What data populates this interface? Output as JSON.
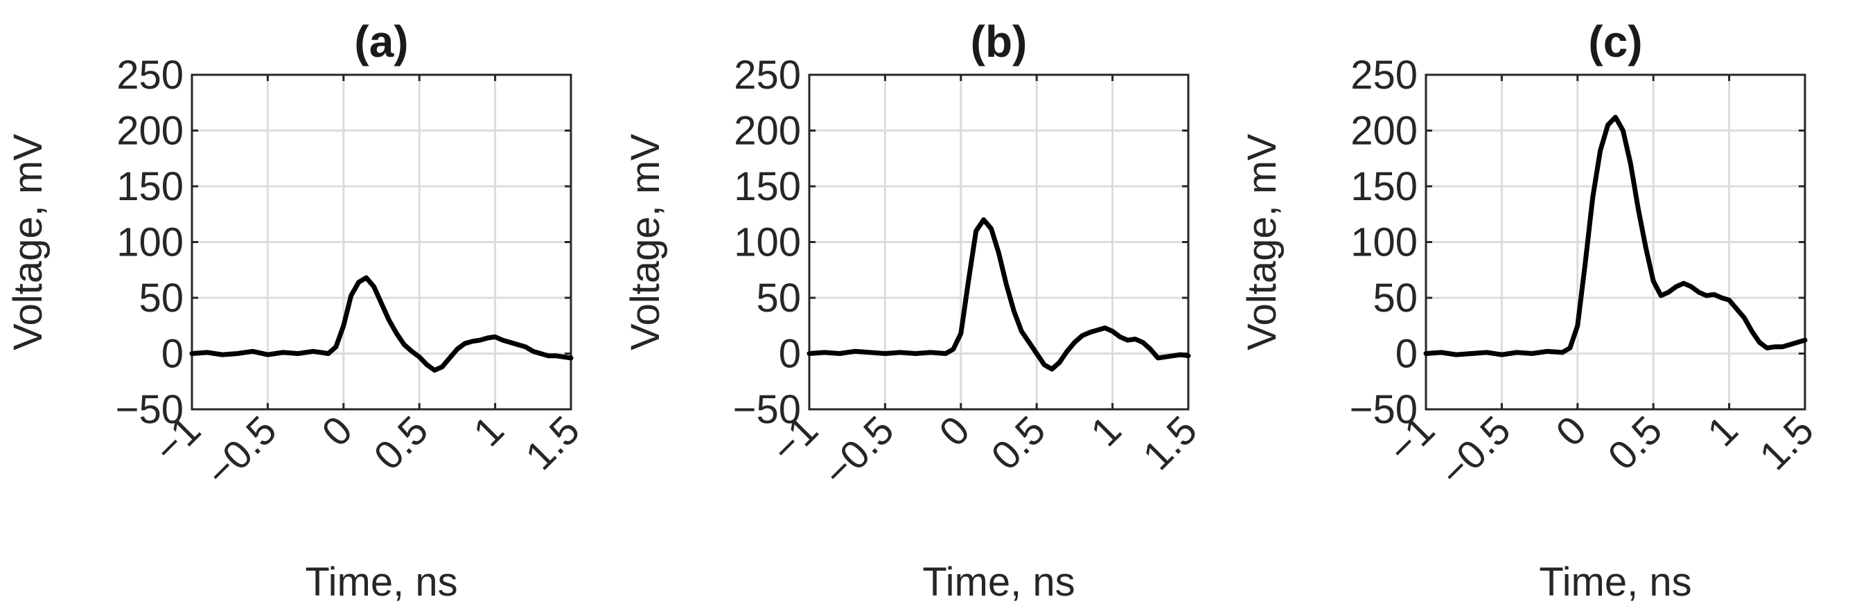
{
  "chart_data": [
    {
      "type": "line",
      "title": "(a)",
      "xlabel": "Time, ns",
      "ylabel": "Voltage, mV",
      "xlim": [
        -1,
        1.5
      ],
      "ylim": [
        -50,
        250
      ],
      "xticks": [
        "−1",
        "−0.5",
        "0",
        "0.5",
        "1",
        "1.5"
      ],
      "yticks": [
        "250",
        "200",
        "150",
        "100",
        "50",
        "0",
        "−50"
      ],
      "grid": true,
      "series": [
        {
          "color": "#000000",
          "x": [
            -1.0,
            -0.9,
            -0.8,
            -0.7,
            -0.6,
            -0.5,
            -0.4,
            -0.3,
            -0.2,
            -0.1,
            -0.05,
            0.0,
            0.05,
            0.1,
            0.15,
            0.2,
            0.25,
            0.3,
            0.35,
            0.4,
            0.45,
            0.5,
            0.55,
            0.6,
            0.65,
            0.7,
            0.75,
            0.8,
            0.85,
            0.9,
            0.95,
            1.0,
            1.05,
            1.1,
            1.15,
            1.2,
            1.25,
            1.3,
            1.35,
            1.4,
            1.45,
            1.5
          ],
          "y": [
            0,
            1,
            -1,
            0,
            2,
            -1,
            1,
            0,
            2,
            0,
            6,
            25,
            52,
            64,
            68,
            60,
            45,
            30,
            18,
            8,
            2,
            -3,
            -10,
            -15,
            -12,
            -4,
            4,
            9,
            11,
            12,
            14,
            15,
            12,
            10,
            8,
            6,
            2,
            0,
            -2,
            -2,
            -3,
            -4
          ]
        }
      ]
    },
    {
      "type": "line",
      "title": "(b)",
      "xlabel": "Time, ns",
      "ylabel": "Voltage, mV",
      "xlim": [
        -1,
        1.5
      ],
      "ylim": [
        -50,
        250
      ],
      "xticks": [
        "−1",
        "−0.5",
        "0",
        "0.5",
        "1",
        "1.5"
      ],
      "yticks": [
        "250",
        "200",
        "150",
        "100",
        "50",
        "0",
        "−50"
      ],
      "grid": true,
      "series": [
        {
          "color": "#000000",
          "x": [
            -1.0,
            -0.9,
            -0.8,
            -0.7,
            -0.6,
            -0.5,
            -0.4,
            -0.3,
            -0.2,
            -0.1,
            -0.05,
            0.0,
            0.05,
            0.1,
            0.15,
            0.2,
            0.25,
            0.3,
            0.35,
            0.4,
            0.45,
            0.5,
            0.55,
            0.6,
            0.65,
            0.7,
            0.75,
            0.8,
            0.85,
            0.9,
            0.95,
            1.0,
            1.05,
            1.1,
            1.15,
            1.2,
            1.25,
            1.3,
            1.35,
            1.4,
            1.45,
            1.5
          ],
          "y": [
            0,
            1,
            0,
            2,
            1,
            0,
            1,
            0,
            1,
            0,
            4,
            18,
            65,
            110,
            120,
            112,
            90,
            62,
            38,
            20,
            10,
            0,
            -10,
            -14,
            -8,
            2,
            10,
            16,
            19,
            21,
            23,
            20,
            15,
            12,
            13,
            10,
            4,
            -4,
            -3,
            -2,
            -1,
            -2
          ]
        }
      ]
    },
    {
      "type": "line",
      "title": "(c)",
      "xlabel": "Time, ns",
      "ylabel": "Voltage, mV",
      "xlim": [
        -1,
        1.5
      ],
      "ylim": [
        -50,
        250
      ],
      "xticks": [
        "−1",
        "−0.5",
        "0",
        "0.5",
        "1",
        "1.5"
      ],
      "yticks": [
        "250",
        "200",
        "150",
        "100",
        "50",
        "0",
        "−50"
      ],
      "grid": true,
      "series": [
        {
          "color": "#000000",
          "x": [
            -1.0,
            -0.9,
            -0.8,
            -0.7,
            -0.6,
            -0.5,
            -0.4,
            -0.3,
            -0.2,
            -0.1,
            -0.05,
            0.0,
            0.05,
            0.1,
            0.15,
            0.2,
            0.25,
            0.3,
            0.35,
            0.4,
            0.45,
            0.5,
            0.55,
            0.6,
            0.65,
            0.7,
            0.75,
            0.8,
            0.85,
            0.9,
            0.95,
            1.0,
            1.05,
            1.1,
            1.15,
            1.2,
            1.25,
            1.3,
            1.35,
            1.4,
            1.45,
            1.5
          ],
          "y": [
            0,
            1,
            -1,
            0,
            1,
            -1,
            1,
            0,
            2,
            1,
            5,
            25,
            80,
            140,
            182,
            205,
            212,
            200,
            170,
            130,
            95,
            65,
            52,
            55,
            60,
            63,
            60,
            55,
            52,
            53,
            50,
            48,
            40,
            32,
            20,
            10,
            5,
            6,
            6,
            8,
            10,
            12
          ]
        }
      ]
    }
  ]
}
